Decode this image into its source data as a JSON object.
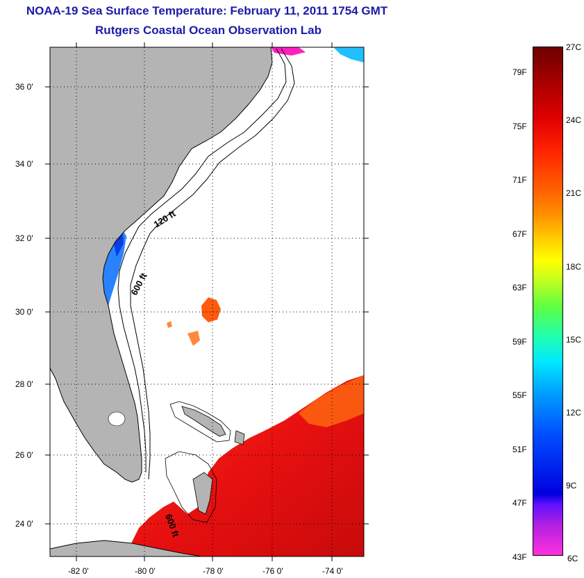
{
  "title": {
    "line1": "NOAA-19 Sea Surface Temperature:  February 11, 2011 1754 GMT",
    "line2": "Rutgers Coastal Ocean Observation Lab"
  },
  "map": {
    "lat_labels": [
      "36 0'",
      "34 0'",
      "32 0'",
      "30 0'",
      "28 0'",
      "26 0'",
      "24 0'"
    ],
    "lon_labels": [
      "-82 0'",
      "-80 0'",
      "-78 0'",
      "-76 0'",
      "-74 0'"
    ],
    "contour_labels": [
      "120 ft",
      "600 ft",
      "600 ft"
    ],
    "colors": {
      "land": "#b4b4b4",
      "warm": "#e00000",
      "cool": "#1e78ff"
    }
  },
  "colorbar": {
    "f_labels": [
      "79F",
      "75F",
      "71F",
      "67F",
      "63F",
      "59F",
      "55F",
      "51F",
      "47F",
      "43F"
    ],
    "c_labels": [
      "27C",
      "24C",
      "21C",
      "18C",
      "15C",
      "12C",
      "9C",
      "6C"
    ]
  }
}
